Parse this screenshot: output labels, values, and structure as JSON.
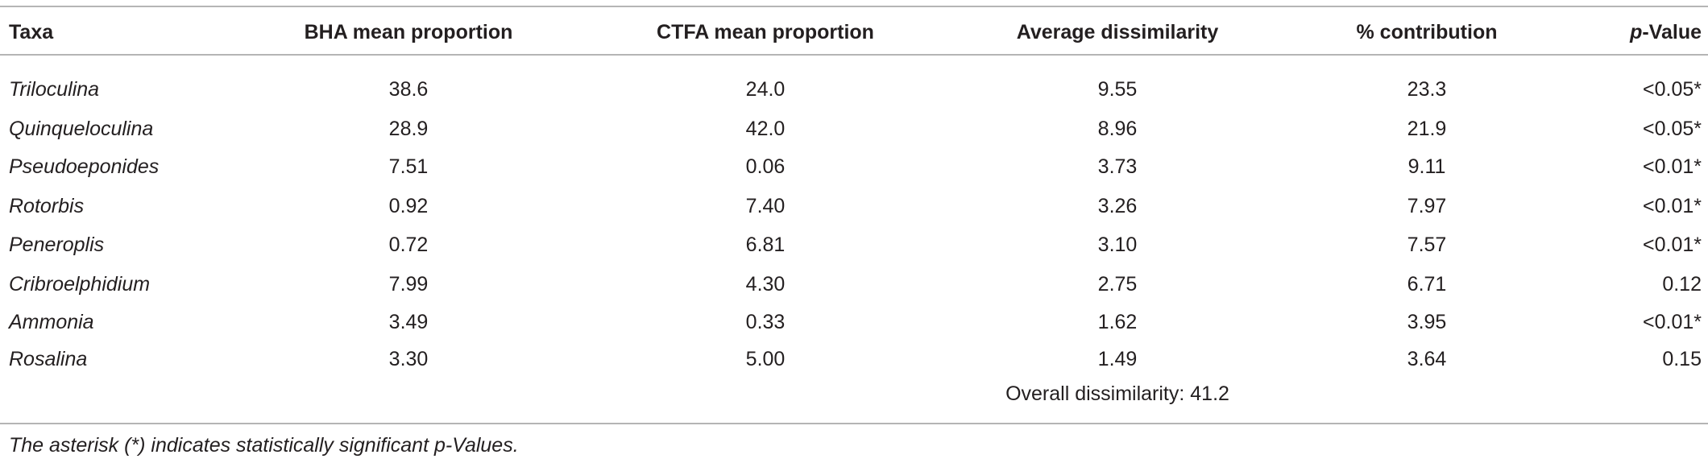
{
  "table": {
    "header": [
      "Taxa",
      "BHA mean proportion",
      "CTFA mean proportion",
      "Average dissimilarity",
      "% contribution"
    ],
    "header_last": {
      "italic": "p",
      "rest": "-Value"
    },
    "rows": [
      [
        "Triloculina",
        "38.6",
        "24.0",
        "9.55",
        "23.3",
        "<0.05*"
      ],
      [
        "Quinqueloculina",
        "28.9",
        "42.0",
        "8.96",
        "21.9",
        "<0.05*"
      ],
      [
        "Pseudoeponides",
        "7.51",
        "0.06",
        "3.73",
        "9.11",
        "<0.01*"
      ],
      [
        "Rotorbis",
        "0.92",
        "7.40",
        "3.26",
        "7.97",
        "<0.01*"
      ],
      [
        "Peneroplis",
        "0.72",
        "6.81",
        "3.10",
        "7.57",
        "<0.01*"
      ],
      [
        "Cribroelphidium",
        "7.99",
        "4.30",
        "2.75",
        "6.71",
        "0.12"
      ],
      [
        "Ammonia",
        "3.49",
        "0.33",
        "1.62",
        "3.95",
        "<0.01*"
      ],
      [
        "Rosalina",
        "3.30",
        "5.00",
        "1.49",
        "3.64",
        "0.15"
      ]
    ],
    "overall": "Overall dissimilarity: 41.2",
    "footnote": "The asterisk (*) indicates statistically significant p-Values."
  }
}
